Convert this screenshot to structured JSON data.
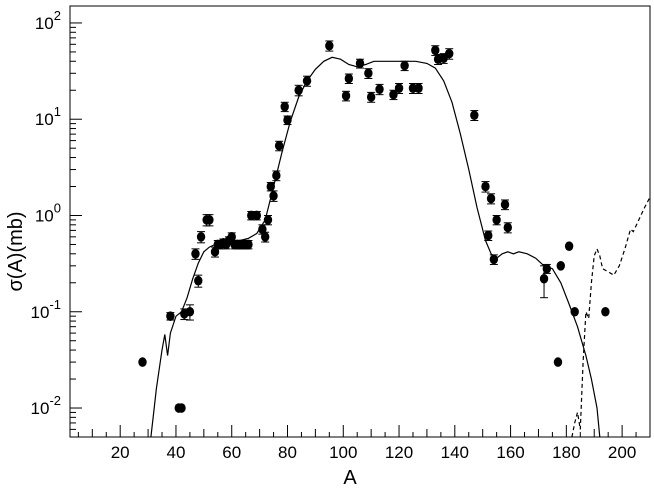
{
  "chart_data": {
    "type": "scatter",
    "xlabel": "A",
    "ylabel": "σ(A)(mb)",
    "xlim": [
      2,
      210
    ],
    "ylim": [
      0.005,
      150
    ],
    "yscale": "log",
    "x_ticks": [
      20,
      40,
      60,
      80,
      100,
      120,
      140,
      160,
      180,
      200
    ],
    "y_ticks": [
      {
        "value": 0.01,
        "mantissa": "10",
        "exp": "-2"
      },
      {
        "value": 0.1,
        "mantissa": "10",
        "exp": "-1"
      },
      {
        "value": 1,
        "mantissa": "10",
        "exp": "0"
      },
      {
        "value": 10,
        "mantissa": "10",
        "exp": "1"
      },
      {
        "value": 100,
        "mantissa": "10",
        "exp": "2"
      }
    ],
    "grid": false,
    "series": [
      {
        "style": "points",
        "points": [
          {
            "x": 28,
            "y": 0.03
          },
          {
            "x": 38,
            "y": 0.09,
            "err": 0.008
          },
          {
            "x": 41,
            "y": 0.01
          },
          {
            "x": 42,
            "y": 0.01
          },
          {
            "x": 43,
            "y": 0.095,
            "err": 0.012
          },
          {
            "x": 45,
            "y": 0.1,
            "err": 0.018
          },
          {
            "x": 47,
            "y": 0.4,
            "err": 0.05
          },
          {
            "x": 48,
            "y": 0.21,
            "err": 0.03
          },
          {
            "x": 49,
            "y": 0.6,
            "err": 0.08
          },
          {
            "x": 51,
            "y": 0.9,
            "err": 0.12
          },
          {
            "x": 52,
            "y": 0.9,
            "err": 0.12
          },
          {
            "x": 54,
            "y": 0.42,
            "err": 0.05
          },
          {
            "x": 55,
            "y": 0.5,
            "err": 0.05
          },
          {
            "x": 56,
            "y": 0.5,
            "err": 0.05
          },
          {
            "x": 57,
            "y": 0.52,
            "err": 0.05
          },
          {
            "x": 58,
            "y": 0.5,
            "err": 0.05
          },
          {
            "x": 59,
            "y": 0.55,
            "err": 0.05
          },
          {
            "x": 60,
            "y": 0.6,
            "err": 0.06
          },
          {
            "x": 61,
            "y": 0.5,
            "err": 0.05
          },
          {
            "x": 62,
            "y": 0.5,
            "err": 0.05
          },
          {
            "x": 63,
            "y": 0.5,
            "err": 0.05
          },
          {
            "x": 64,
            "y": 0.5,
            "err": 0.05
          },
          {
            "x": 65,
            "y": 0.5,
            "err": 0.05
          },
          {
            "x": 66,
            "y": 0.5,
            "err": 0.05
          },
          {
            "x": 67,
            "y": 1.0,
            "err": 0.1
          },
          {
            "x": 69,
            "y": 1.0,
            "err": 0.1
          },
          {
            "x": 71,
            "y": 0.72,
            "err": 0.08
          },
          {
            "x": 72,
            "y": 0.6,
            "err": 0.07
          },
          {
            "x": 73,
            "y": 0.9,
            "err": 0.1
          },
          {
            "x": 74,
            "y": 2.0,
            "err": 0.2
          },
          {
            "x": 75,
            "y": 1.6,
            "err": 0.2
          },
          {
            "x": 76,
            "y": 2.6,
            "err": 0.3
          },
          {
            "x": 77,
            "y": 5.3,
            "err": 0.6
          },
          {
            "x": 79,
            "y": 13.5,
            "err": 1.5
          },
          {
            "x": 80,
            "y": 9.8,
            "err": 1.0
          },
          {
            "x": 84,
            "y": 20,
            "err": 2.5
          },
          {
            "x": 87,
            "y": 25,
            "err": 3
          },
          {
            "x": 95,
            "y": 58,
            "err": 7
          },
          {
            "x": 101,
            "y": 17.5,
            "err": 2
          },
          {
            "x": 102,
            "y": 26.5,
            "err": 3
          },
          {
            "x": 106,
            "y": 38,
            "err": 4
          },
          {
            "x": 109,
            "y": 30,
            "err": 3.5
          },
          {
            "x": 110,
            "y": 17,
            "err": 2
          },
          {
            "x": 113,
            "y": 20.5,
            "err": 2.5
          },
          {
            "x": 118,
            "y": 18,
            "err": 2
          },
          {
            "x": 120,
            "y": 21,
            "err": 2.5
          },
          {
            "x": 122,
            "y": 36,
            "err": 4
          },
          {
            "x": 125,
            "y": 21,
            "err": 2.5
          },
          {
            "x": 127,
            "y": 21,
            "err": 2.5
          },
          {
            "x": 133,
            "y": 52,
            "err": 6
          },
          {
            "x": 134,
            "y": 42,
            "err": 5
          },
          {
            "x": 136,
            "y": 43,
            "err": 5
          },
          {
            "x": 138,
            "y": 48,
            "err": 6
          },
          {
            "x": 147,
            "y": 11,
            "err": 1.3
          },
          {
            "x": 151,
            "y": 2.0,
            "err": 0.25
          },
          {
            "x": 152,
            "y": 0.62,
            "err": 0.07
          },
          {
            "x": 153,
            "y": 1.5,
            "err": 0.18
          },
          {
            "x": 154,
            "y": 0.35,
            "err": 0.04
          },
          {
            "x": 155,
            "y": 0.9,
            "err": 0.1
          },
          {
            "x": 158,
            "y": 1.3,
            "err": 0.15
          },
          {
            "x": 159,
            "y": 0.75,
            "err": 0.09
          },
          {
            "x": 172,
            "y": 0.22,
            "err_low": 0.08,
            "err_high": 0.08
          },
          {
            "x": 173,
            "y": 0.28,
            "err": 0.03
          },
          {
            "x": 177,
            "y": 0.03
          },
          {
            "x": 178,
            "y": 0.3
          },
          {
            "x": 181,
            "y": 0.48
          },
          {
            "x": 183,
            "y": 0.1
          },
          {
            "x": 194,
            "y": 0.1
          }
        ]
      },
      {
        "style": "solid",
        "points": [
          {
            "x": 31,
            "y": 0.005
          },
          {
            "x": 32,
            "y": 0.009
          },
          {
            "x": 33,
            "y": 0.016
          },
          {
            "x": 35,
            "y": 0.04
          },
          {
            "x": 36,
            "y": 0.058
          },
          {
            "x": 37,
            "y": 0.035
          },
          {
            "x": 38,
            "y": 0.06
          },
          {
            "x": 40,
            "y": 0.09
          },
          {
            "x": 42,
            "y": 0.1
          },
          {
            "x": 44,
            "y": 0.14
          },
          {
            "x": 46,
            "y": 0.22
          },
          {
            "x": 48,
            "y": 0.32
          },
          {
            "x": 50,
            "y": 0.42
          },
          {
            "x": 52,
            "y": 0.47
          },
          {
            "x": 54,
            "y": 0.5
          },
          {
            "x": 57,
            "y": 0.55
          },
          {
            "x": 60,
            "y": 0.55
          },
          {
            "x": 63,
            "y": 0.55
          },
          {
            "x": 66,
            "y": 0.58
          },
          {
            "x": 69,
            "y": 0.65
          },
          {
            "x": 72,
            "y": 0.9
          },
          {
            "x": 75,
            "y": 2.0
          },
          {
            "x": 78,
            "y": 4.5
          },
          {
            "x": 81,
            "y": 9.5
          },
          {
            "x": 84,
            "y": 17
          },
          {
            "x": 87,
            "y": 25
          },
          {
            "x": 90,
            "y": 33
          },
          {
            "x": 93,
            "y": 40
          },
          {
            "x": 96,
            "y": 44
          },
          {
            "x": 99,
            "y": 42
          },
          {
            "x": 102,
            "y": 37
          },
          {
            "x": 105,
            "y": 35
          },
          {
            "x": 108,
            "y": 37
          },
          {
            "x": 111,
            "y": 40
          },
          {
            "x": 114,
            "y": 40
          },
          {
            "x": 118,
            "y": 40
          },
          {
            "x": 122,
            "y": 40
          },
          {
            "x": 126,
            "y": 40
          },
          {
            "x": 130,
            "y": 38
          },
          {
            "x": 133,
            "y": 34
          },
          {
            "x": 136,
            "y": 25
          },
          {
            "x": 139,
            "y": 15
          },
          {
            "x": 142,
            "y": 7
          },
          {
            "x": 145,
            "y": 3
          },
          {
            "x": 148,
            "y": 1.2
          },
          {
            "x": 151,
            "y": 0.55
          },
          {
            "x": 153,
            "y": 0.4
          },
          {
            "x": 155,
            "y": 0.36
          },
          {
            "x": 157,
            "y": 0.4
          },
          {
            "x": 159,
            "y": 0.42
          },
          {
            "x": 161,
            "y": 0.4
          },
          {
            "x": 163,
            "y": 0.42
          },
          {
            "x": 166,
            "y": 0.4
          },
          {
            "x": 169,
            "y": 0.36
          },
          {
            "x": 172,
            "y": 0.3
          },
          {
            "x": 175,
            "y": 0.28
          },
          {
            "x": 178,
            "y": 0.2
          },
          {
            "x": 181,
            "y": 0.12
          },
          {
            "x": 184,
            "y": 0.07
          },
          {
            "x": 187,
            "y": 0.035
          },
          {
            "x": 189,
            "y": 0.02
          },
          {
            "x": 191,
            "y": 0.01
          },
          {
            "x": 192,
            "y": 0.005
          }
        ]
      },
      {
        "style": "dashed",
        "points": [
          {
            "x": 182,
            "y": 0.005
          },
          {
            "x": 183,
            "y": 0.007
          },
          {
            "x": 184,
            "y": 0.009
          },
          {
            "x": 185,
            "y": 0.006
          },
          {
            "x": 186,
            "y": 0.03
          },
          {
            "x": 187,
            "y": 0.1
          },
          {
            "x": 188,
            "y": 0.085
          },
          {
            "x": 189,
            "y": 0.2
          },
          {
            "x": 190,
            "y": 0.38
          },
          {
            "x": 191,
            "y": 0.45
          },
          {
            "x": 192,
            "y": 0.38
          },
          {
            "x": 193,
            "y": 0.28
          },
          {
            "x": 195,
            "y": 0.26
          },
          {
            "x": 197,
            "y": 0.24
          },
          {
            "x": 199,
            "y": 0.3
          },
          {
            "x": 201,
            "y": 0.45
          },
          {
            "x": 203,
            "y": 0.72
          },
          {
            "x": 204,
            "y": 0.68
          },
          {
            "x": 206,
            "y": 0.9
          },
          {
            "x": 208,
            "y": 1.2
          },
          {
            "x": 210,
            "y": 1.55
          }
        ]
      }
    ]
  }
}
